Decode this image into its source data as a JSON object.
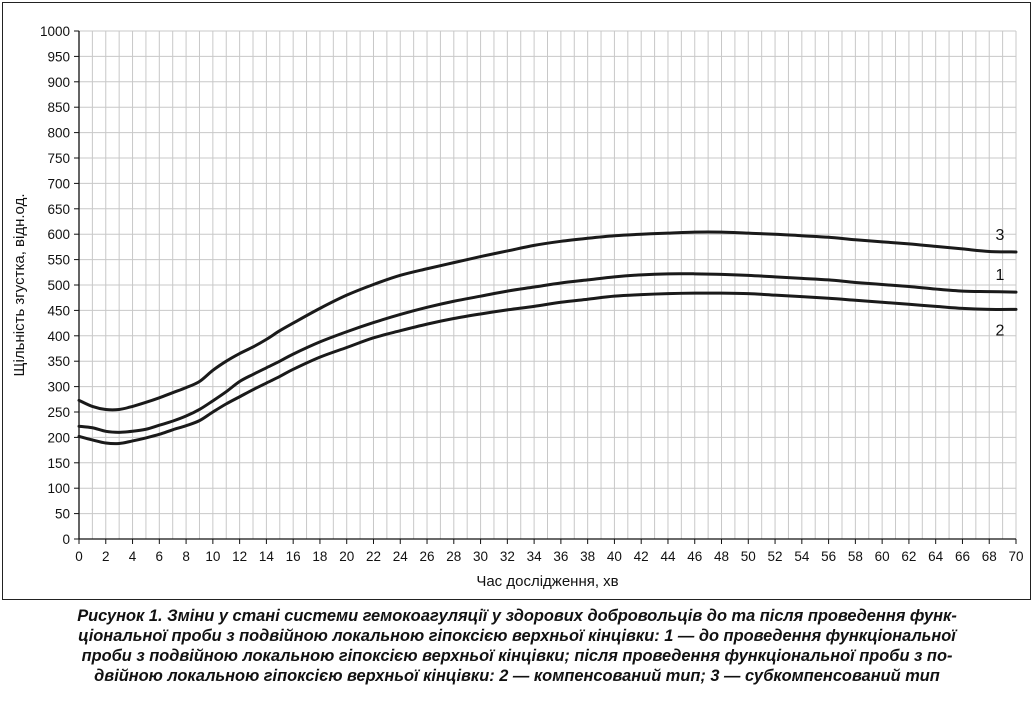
{
  "chart_data": {
    "type": "line",
    "xlabel": "Час дослідження, хв",
    "ylabel": "Щільність згустка, відн.од.",
    "xlim": [
      0,
      70
    ],
    "ylim": [
      0,
      1000
    ],
    "xticks": [
      0,
      2,
      4,
      6,
      8,
      10,
      12,
      14,
      16,
      18,
      20,
      22,
      24,
      26,
      28,
      30,
      32,
      34,
      36,
      38,
      40,
      42,
      44,
      46,
      48,
      50,
      52,
      54,
      56,
      58,
      60,
      62,
      64,
      66,
      68,
      70
    ],
    "yticks": [
      0,
      50,
      100,
      150,
      200,
      250,
      300,
      350,
      400,
      450,
      500,
      550,
      600,
      650,
      700,
      750,
      800,
      850,
      900,
      950,
      1000
    ],
    "grid": true,
    "legend": "inline-right",
    "series": [
      {
        "name": "1",
        "x": [
          0,
          1,
          2,
          3,
          4,
          5,
          6,
          7,
          8,
          9,
          10,
          11,
          12,
          13,
          14,
          15,
          16,
          18,
          20,
          22,
          24,
          26,
          28,
          30,
          32,
          34,
          36,
          38,
          40,
          42,
          44,
          46,
          48,
          50,
          52,
          54,
          56,
          58,
          60,
          62,
          64,
          66,
          68,
          70
        ],
        "y": [
          222,
          219,
          212,
          210,
          212,
          216,
          224,
          232,
          242,
          255,
          272,
          290,
          310,
          324,
          337,
          350,
          364,
          388,
          408,
          426,
          442,
          456,
          468,
          478,
          488,
          496,
          504,
          510,
          516,
          520,
          522,
          522,
          521,
          519,
          516,
          513,
          510,
          505,
          501,
          497,
          492,
          488,
          487,
          486
        ]
      },
      {
        "name": "2",
        "x": [
          0,
          1,
          2,
          3,
          4,
          5,
          6,
          7,
          8,
          9,
          10,
          11,
          12,
          13,
          14,
          15,
          16,
          18,
          20,
          22,
          24,
          26,
          28,
          30,
          32,
          34,
          36,
          38,
          40,
          42,
          44,
          46,
          48,
          50,
          52,
          54,
          56,
          58,
          60,
          62,
          64,
          66,
          68,
          70
        ],
        "y": [
          202,
          195,
          189,
          188,
          193,
          199,
          206,
          215,
          223,
          233,
          250,
          266,
          280,
          294,
          307,
          320,
          334,
          358,
          377,
          396,
          410,
          423,
          434,
          443,
          451,
          458,
          466,
          472,
          478,
          481,
          483,
          484,
          484,
          483,
          480,
          477,
          474,
          470,
          466,
          462,
          458,
          454,
          452,
          452
        ]
      },
      {
        "name": "3",
        "x": [
          0,
          1,
          2,
          3,
          4,
          5,
          6,
          7,
          8,
          9,
          10,
          11,
          12,
          13,
          14,
          15,
          16,
          18,
          20,
          22,
          24,
          26,
          28,
          30,
          32,
          34,
          36,
          38,
          40,
          42,
          44,
          46,
          48,
          50,
          52,
          54,
          56,
          58,
          60,
          62,
          64,
          66,
          68,
          70
        ],
        "y": [
          273,
          261,
          255,
          255,
          261,
          269,
          278,
          288,
          298,
          310,
          332,
          350,
          365,
          378,
          393,
          410,
          425,
          454,
          480,
          501,
          519,
          532,
          544,
          556,
          567,
          578,
          586,
          592,
          597,
          600,
          602,
          604,
          604,
          602,
          600,
          597,
          594,
          589,
          585,
          581,
          576,
          571,
          566,
          565
        ]
      }
    ],
    "line_color": "#1a1a1a",
    "grid_color": "#c8c8c8"
  },
  "caption": {
    "lines": [
      "Рисунок 1. Зміни у стані системи гемокоагуляції у здорових добровольців до та після проведення функ-",
      "ціональної проби з подвійною локальною гіпоксією верхньої кінцівки: 1 — до проведення функціональної",
      "проби з подвійною локальною гіпоксією верхньої кінцівки; після проведення функціональної проби з по-",
      "двійною локальною гіпоксією верхньої кінцівки: 2 — компенсований тип; 3 — субкомпенсований тип"
    ]
  }
}
